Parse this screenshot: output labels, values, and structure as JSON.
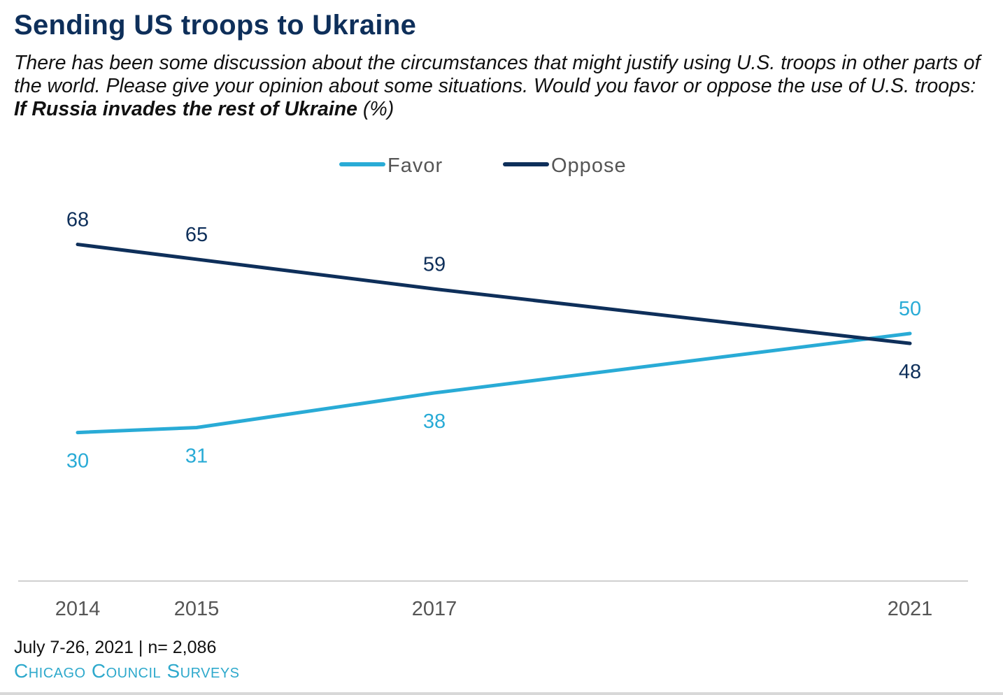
{
  "chart_data": {
    "type": "line",
    "title": "Sending US troops to Ukraine",
    "subtitle": "There has been some discussion about the circumstances that might justify using U.S. troops in other parts of the world. Please give your opinion about some situations. Would you favor or oppose the use of U.S. troops: ",
    "subtitle_emphasis": "If Russia invades the rest of Ukraine",
    "subtitle_suffix": " (%)",
    "x": [
      2014,
      2015,
      2017,
      2021
    ],
    "x_tick_labels": [
      "2014",
      "2015",
      "2017",
      "2021"
    ],
    "series": [
      {
        "name": "Favor",
        "values": [
          30,
          31,
          38,
          50
        ],
        "color": "#29abd6"
      },
      {
        "name": "Oppose",
        "values": [
          68,
          65,
          59,
          48
        ],
        "color": "#0e2f5a"
      }
    ],
    "ylim": [
      0,
      75
    ],
    "grid": false,
    "legend": "top-center",
    "xlabel": "",
    "ylabel": ""
  },
  "footer": {
    "note": "July 7-26, 2021 | n= 2,086",
    "source": "Chicago Council Surveys"
  }
}
